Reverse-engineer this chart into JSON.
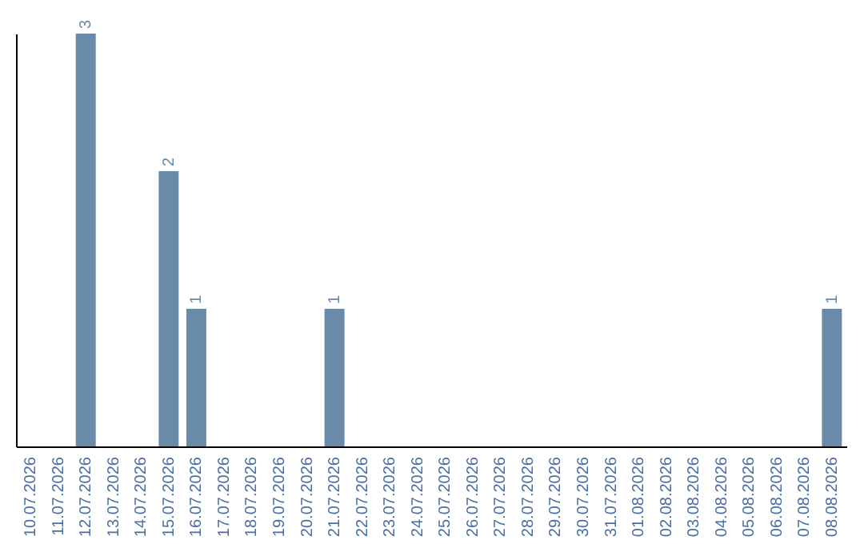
{
  "chart_data": {
    "type": "bar",
    "categories": [
      "10.07.2026",
      "11.07.2026",
      "12.07.2026",
      "13.07.2026",
      "14.07.2026",
      "15.07.2026",
      "16.07.2026",
      "17.07.2026",
      "18.07.2026",
      "19.07.2026",
      "20.07.2026",
      "21.07.2026",
      "22.07.2026",
      "23.07.2026",
      "24.07.2026",
      "25.07.2026",
      "26.07.2026",
      "27.07.2026",
      "28.07.2026",
      "29.07.2026",
      "30.07.2026",
      "31.07.2026",
      "01.08.2026",
      "02.08.2026",
      "03.08.2026",
      "04.08.2026",
      "05.08.2026",
      "06.08.2026",
      "07.08.2026",
      "08.08.2026"
    ],
    "values": [
      0,
      0,
      3,
      0,
      0,
      2,
      1,
      0,
      0,
      0,
      0,
      1,
      0,
      0,
      0,
      0,
      0,
      0,
      0,
      0,
      0,
      0,
      0,
      0,
      0,
      0,
      0,
      0,
      0,
      1
    ],
    "value_labels": [
      null,
      null,
      "3",
      null,
      null,
      "2",
      "1",
      null,
      null,
      null,
      null,
      "1",
      null,
      null,
      null,
      null,
      null,
      null,
      null,
      null,
      null,
      null,
      null,
      null,
      null,
      null,
      null,
      null,
      null,
      "1"
    ],
    "color": "#6a8aaa",
    "tick_labels": "x",
    "grid": false
  }
}
